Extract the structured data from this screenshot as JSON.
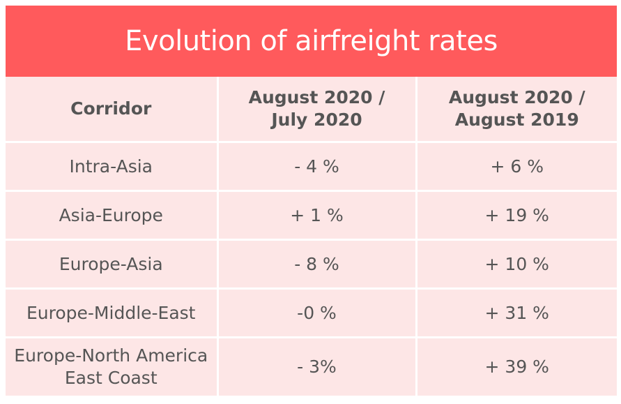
{
  "chart_data": {
    "type": "table",
    "title": "Evolution of airfreight rates",
    "columns": [
      "Corridor",
      "August 2020 / July 2020",
      "August 2020 / August 2019"
    ],
    "rows": [
      [
        "Intra-Asia",
        "- 4 %",
        "+ 6 %"
      ],
      [
        "Asia-Europe",
        "+ 1 %",
        "+ 19 %"
      ],
      [
        "Europe-Asia",
        "- 8 %",
        "+ 10 %"
      ],
      [
        "Europe-Middle-East",
        "-0 %",
        "+ 31 %"
      ],
      [
        "Europe-North America East Coast",
        "- 3%",
        "+ 39 %"
      ]
    ]
  },
  "colors": {
    "header": "#ff5a5c",
    "cell": "#fde6e6",
    "text": "#555555"
  }
}
